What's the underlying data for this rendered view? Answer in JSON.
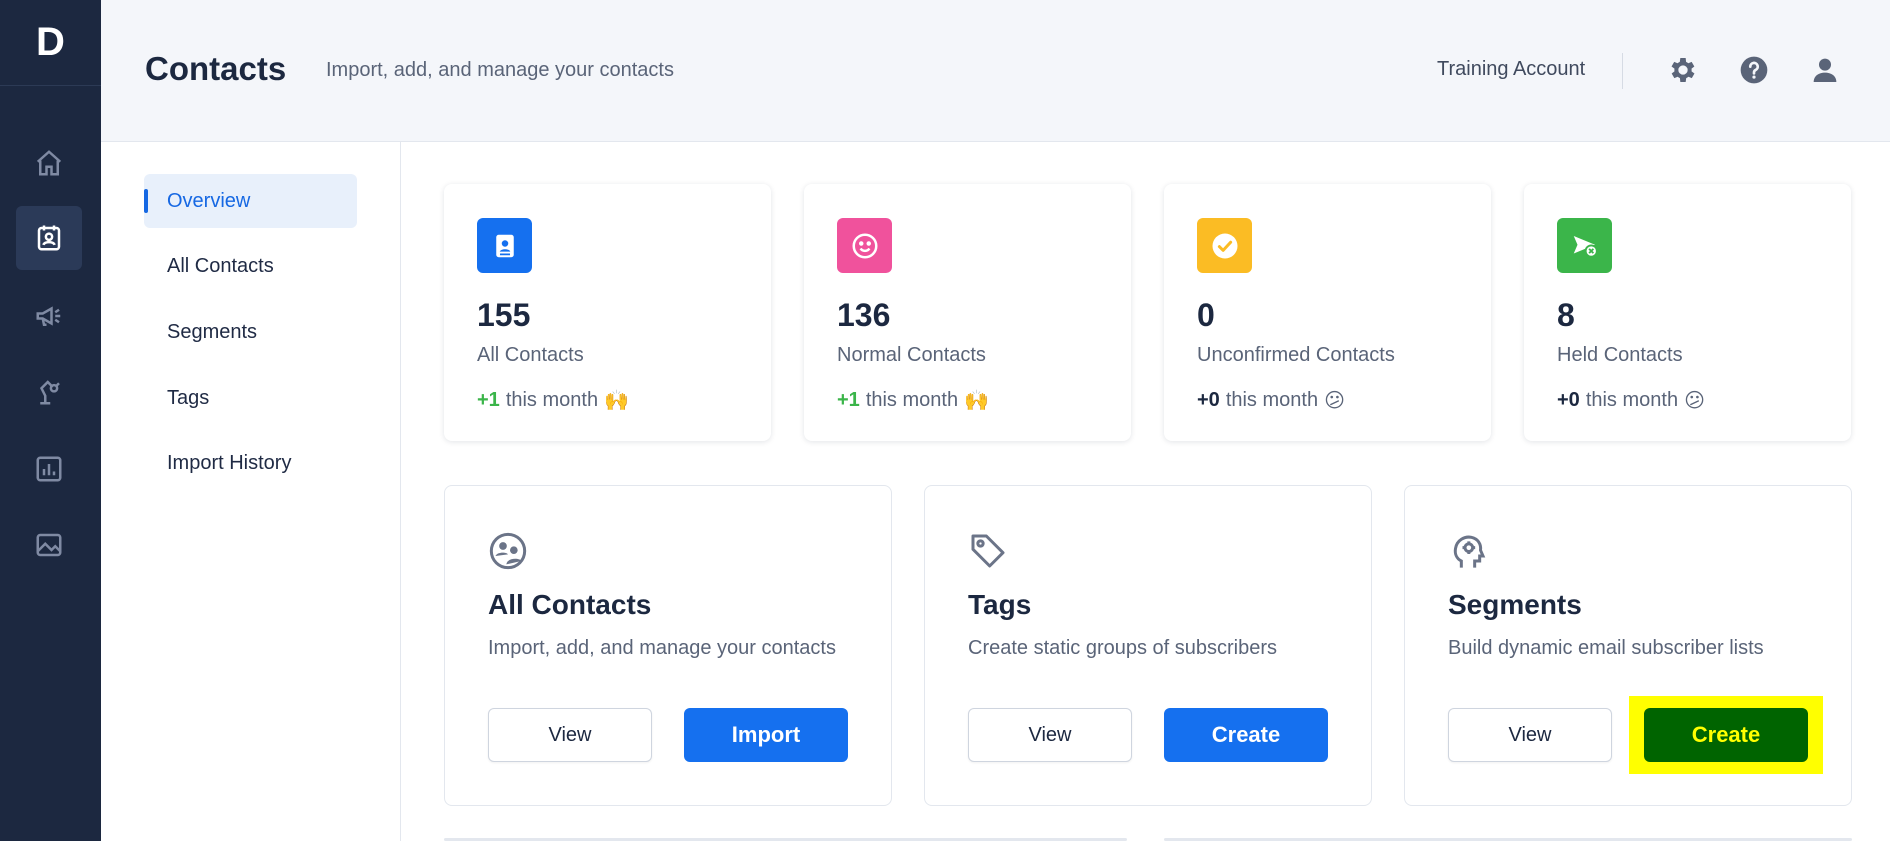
{
  "rail": {
    "logo": "D",
    "items": [
      {
        "icon": "home-icon",
        "active": false
      },
      {
        "icon": "contacts-icon",
        "active": true
      },
      {
        "icon": "megaphone-icon",
        "active": false
      },
      {
        "icon": "automation-icon",
        "active": false
      },
      {
        "icon": "reports-icon",
        "active": false
      },
      {
        "icon": "image-icon",
        "active": false
      }
    ]
  },
  "header": {
    "title": "Contacts",
    "subtitle": "Import, add, and manage your contacts",
    "account": "Training Account",
    "icons": [
      "gear-icon",
      "help-icon",
      "user-icon"
    ]
  },
  "subnav": {
    "items": [
      {
        "label": "Overview",
        "active": true
      },
      {
        "label": "All Contacts",
        "active": false
      },
      {
        "label": "Segments",
        "active": false
      },
      {
        "label": "Tags",
        "active": false
      },
      {
        "label": "Import History",
        "active": false
      }
    ]
  },
  "stats": [
    {
      "value": "155",
      "label": "All Contacts",
      "delta": "+1",
      "delta_suffix": "this month",
      "emoji": "🙌",
      "color": "#1570ef",
      "icon": "address-book-icon"
    },
    {
      "value": "136",
      "label": "Normal Contacts",
      "delta": "+1",
      "delta_suffix": "this month",
      "emoji": "🙌",
      "color": "#f0529c",
      "icon": "smile-icon"
    },
    {
      "value": "0",
      "label": "Unconfirmed Contacts",
      "delta": "+0",
      "delta_suffix": "this month",
      "emoji": "😕",
      "color": "#fbbc24",
      "icon": "check-circle-icon"
    },
    {
      "value": "8",
      "label": "Held Contacts",
      "delta": "+0",
      "delta_suffix": "this month",
      "emoji": "😕",
      "color": "#3bb54a",
      "icon": "send-blocked-icon"
    }
  ],
  "features": [
    {
      "title": "All Contacts",
      "description": "Import, add, and manage your contacts",
      "icon": "users-group-icon",
      "secondary": "View",
      "primary": "Import"
    },
    {
      "title": "Tags",
      "description": "Create static groups of subscribers",
      "icon": "tag-icon",
      "secondary": "View",
      "primary": "Create"
    },
    {
      "title": "Segments",
      "description": "Build dynamic email subscriber lists",
      "icon": "head-gear-icon",
      "secondary": "View",
      "primary": "Create"
    }
  ],
  "colors": {
    "rail_bg": "#1c2840",
    "primary": "#1570ef",
    "highlight": "#ffff00",
    "highlight_button": "#006400"
  }
}
